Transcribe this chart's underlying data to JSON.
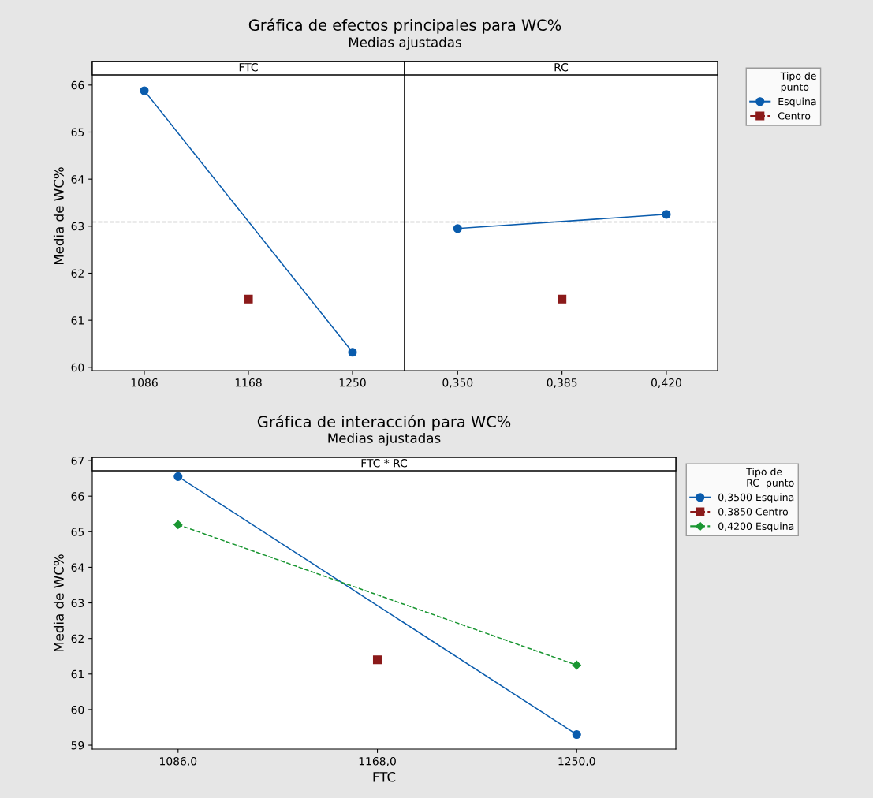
{
  "chart_data": [
    {
      "type": "line",
      "title": "Gráfica de efectos principales para WC%",
      "subtitle": "Medias ajustadas",
      "annotations": [
        "FTC"
      ],
      "ylabel": "Media de WC%",
      "xlim": [
        1045,
        1291
      ],
      "xticks": [
        1086,
        1168,
        1250
      ],
      "ylim": [
        59.93,
        66.5
      ],
      "yticks": [
        60,
        61,
        62,
        63,
        64,
        65,
        66
      ],
      "legend": "right",
      "legend_title": "Tipo de\npunto",
      "grid": false,
      "series": [
        {
          "name": "Esquina",
          "color": "#0a5cad",
          "x": [
            1086,
            1250
          ],
          "values": [
            65.88,
            60.32
          ],
          "marker": "circle",
          "line_style": "solid"
        },
        {
          "name": "Centro",
          "color": "#8b1a1a",
          "x": [
            1168
          ],
          "values": [
            61.45
          ],
          "marker": "square",
          "line_style": "dashed"
        }
      ],
      "ref_lines": [
        {
          "axis": "y",
          "value": 63.09,
          "color": "#b0b0b0",
          "line_style": "dashed"
        }
      ]
    },
    {
      "type": "line",
      "annotations": [
        "RC"
      ],
      "xlim": [
        0.3322,
        0.4372
      ],
      "xticks": [
        {
          "value": 0.35,
          "label": "0,350"
        },
        {
          "value": 0.385,
          "label": "0,385"
        },
        {
          "value": 0.42,
          "label": "0,420"
        }
      ],
      "ylim": [
        59.93,
        66.5
      ],
      "tick_labels": "x",
      "grid": false,
      "series": [
        {
          "color": "#0a5cad",
          "x": [
            0.35,
            0.42
          ],
          "values": [
            62.95,
            63.25
          ],
          "marker": "circle",
          "line_style": "solid"
        },
        {
          "color": "#8b1a1a",
          "x": [
            0.385
          ],
          "values": [
            61.45
          ],
          "marker": "square",
          "line_style": "dashed"
        }
      ],
      "ref_lines": [
        {
          "axis": "y",
          "value": 63.09,
          "color": "#b0b0b0",
          "line_style": "dashed"
        }
      ]
    },
    {
      "type": "line",
      "title": "Gráfica de interacción para WC%",
      "subtitle": "Medias ajustadas",
      "annotations": [
        "FTC * RC"
      ],
      "xlabel": "FTC",
      "ylabel": "Media de WC%",
      "xlim": [
        1050.7,
        1290.8
      ],
      "xticks": [
        {
          "value": 1086,
          "label": "1086,0"
        },
        {
          "value": 1168,
          "label": "1168,0"
        },
        {
          "value": 1250,
          "label": "1250,0"
        }
      ],
      "ylim": [
        58.89,
        67.09
      ],
      "yticks": [
        59,
        60,
        61,
        62,
        63,
        64,
        65,
        66,
        67
      ],
      "legend": "right",
      "legend_title": "Tipo de\nRC  punto",
      "grid": false,
      "series": [
        {
          "name": "0,3500 Esquina",
          "color": "#0a5cad",
          "x": [
            1086,
            1250
          ],
          "values": [
            66.55,
            59.3
          ],
          "marker": "circle",
          "line_style": "solid"
        },
        {
          "name": "0,3850 Centro",
          "color": "#8b1a1a",
          "x": [
            1168
          ],
          "values": [
            61.4
          ],
          "marker": "square",
          "line_style": "dashed"
        },
        {
          "name": "0,4200 Esquina",
          "color": "#1a9632",
          "x": [
            1086,
            1250
          ],
          "values": [
            65.2,
            61.25
          ],
          "marker": "diamond",
          "line_style": "dashed"
        }
      ]
    }
  ]
}
